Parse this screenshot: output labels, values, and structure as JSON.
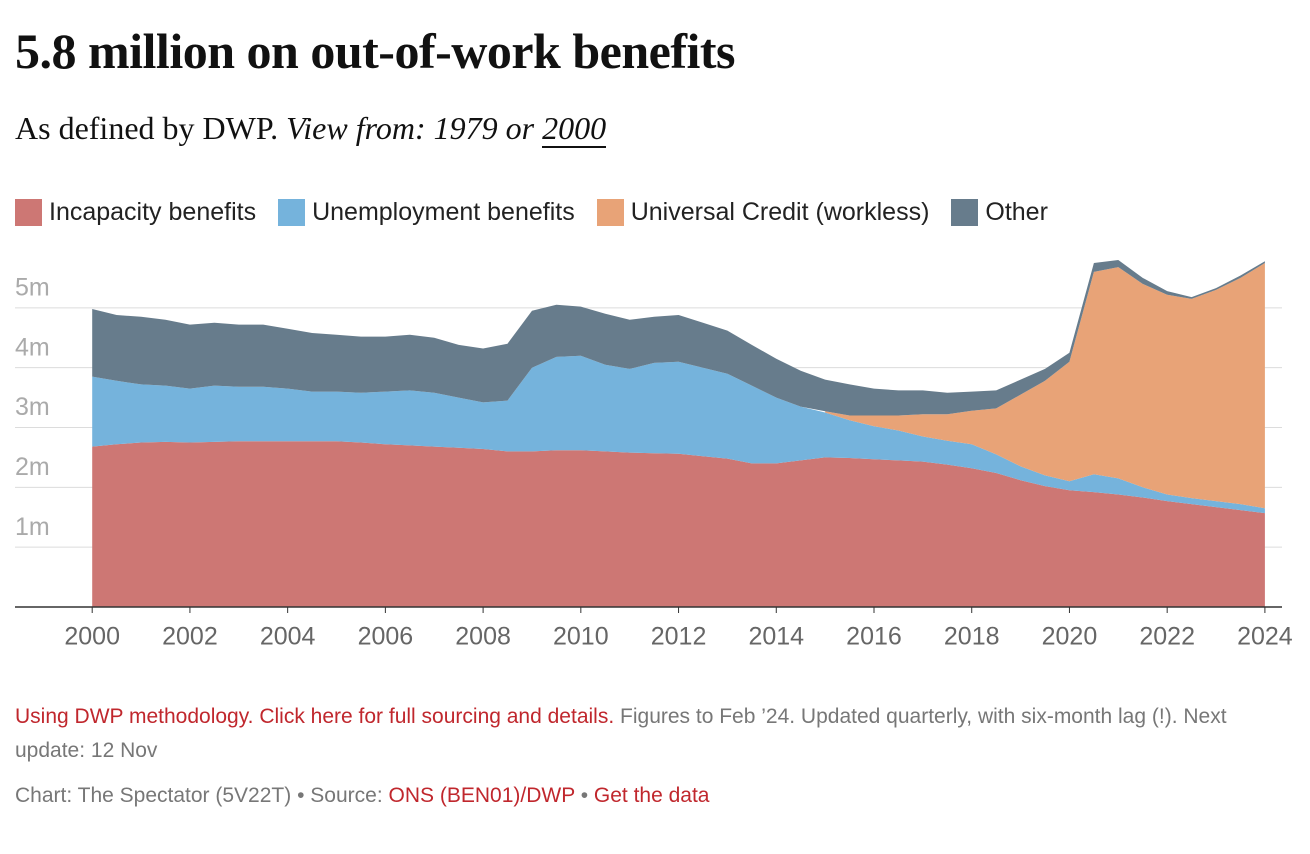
{
  "header": {
    "title": "5.8 million on out-of-work benefits",
    "subtitle": {
      "text": "As defined by DWP.",
      "view_from": "View from:",
      "options": [
        "1979",
        "2000"
      ],
      "or": "or"
    }
  },
  "chart_data": {
    "type": "stacked-area",
    "x": [
      2000,
      2000.5,
      2001,
      2001.5,
      2002,
      2002.5,
      2003,
      2003.5,
      2004,
      2004.5,
      2005,
      2005.5,
      2006,
      2006.5,
      2007,
      2007.5,
      2008,
      2008.5,
      2009,
      2009.5,
      2010,
      2010.5,
      2011,
      2011.5,
      2012,
      2012.5,
      2013,
      2013.5,
      2014,
      2014.5,
      2015,
      2015.5,
      2016,
      2016.5,
      2017,
      2017.5,
      2018,
      2018.5,
      2019,
      2019.5,
      2020,
      2020.5,
      2021,
      2021.5,
      2022,
      2022.5,
      2023,
      2023.5,
      2024
    ],
    "series": [
      {
        "name": "Incapacity benefits",
        "color": "#cd7774",
        "values": [
          2.68,
          2.72,
          2.75,
          2.76,
          2.75,
          2.76,
          2.77,
          2.77,
          2.77,
          2.77,
          2.77,
          2.75,
          2.72,
          2.7,
          2.68,
          2.66,
          2.64,
          2.6,
          2.6,
          2.62,
          2.62,
          2.6,
          2.58,
          2.57,
          2.56,
          2.52,
          2.48,
          2.4,
          2.4,
          2.45,
          2.5,
          2.49,
          2.47,
          2.45,
          2.43,
          2.38,
          2.32,
          2.24,
          2.12,
          2.02,
          1.95,
          1.92,
          1.88,
          1.83,
          1.77,
          1.72,
          1.67,
          1.62,
          1.57
        ]
      },
      {
        "name": "Unemployment benefits",
        "color": "#75b3dc",
        "values": [
          1.17,
          1.06,
          0.97,
          0.94,
          0.9,
          0.94,
          0.91,
          0.91,
          0.88,
          0.83,
          0.83,
          0.83,
          0.88,
          0.92,
          0.9,
          0.84,
          0.78,
          0.85,
          1.4,
          1.56,
          1.58,
          1.45,
          1.4,
          1.51,
          1.54,
          1.48,
          1.42,
          1.3,
          1.1,
          0.9,
          0.75,
          0.63,
          0.55,
          0.5,
          0.42,
          0.4,
          0.4,
          0.31,
          0.23,
          0.18,
          0.15,
          0.3,
          0.27,
          0.17,
          0.11,
          0.1,
          0.1,
          0.1,
          0.08
        ]
      },
      {
        "name": "Universal Credit (workless)",
        "color": "#e8a377",
        "values": [
          null,
          null,
          null,
          null,
          null,
          null,
          null,
          null,
          null,
          null,
          null,
          null,
          null,
          null,
          null,
          null,
          null,
          null,
          null,
          null,
          null,
          null,
          null,
          null,
          null,
          null,
          null,
          null,
          null,
          null,
          0.02,
          0.08,
          0.18,
          0.25,
          0.37,
          0.44,
          0.56,
          0.77,
          1.2,
          1.58,
          2.0,
          3.38,
          3.53,
          3.4,
          3.34,
          3.33,
          3.53,
          3.78,
          4.1
        ]
      },
      {
        "name": "Other",
        "color": "#677c8c",
        "values": [
          1.13,
          1.1,
          1.13,
          1.1,
          1.07,
          1.05,
          1.04,
          1.04,
          1.0,
          0.98,
          0.95,
          0.94,
          0.92,
          0.93,
          0.92,
          0.88,
          0.9,
          0.95,
          0.95,
          0.87,
          0.82,
          0.85,
          0.82,
          0.77,
          0.78,
          0.75,
          0.72,
          0.68,
          0.65,
          0.6,
          0.53,
          0.52,
          0.45,
          0.42,
          0.4,
          0.36,
          0.32,
          0.3,
          0.25,
          0.2,
          0.15,
          0.15,
          0.12,
          0.1,
          0.06,
          0.03,
          0.03,
          0.04,
          0.03
        ]
      }
    ],
    "xlim": [
      1998.42,
      2024.35
    ],
    "xticks": [
      2000,
      2002,
      2004,
      2006,
      2008,
      2010,
      2012,
      2014,
      2016,
      2018,
      2020,
      2022,
      2024
    ],
    "ylim": [
      0,
      6
    ],
    "yticks": [
      {
        "value": 1,
        "label": "1m"
      },
      {
        "value": 2,
        "label": "2m"
      },
      {
        "value": 3,
        "label": "3m"
      },
      {
        "value": 4,
        "label": "4m"
      },
      {
        "value": 5,
        "label": "5m"
      }
    ],
    "grid": true
  },
  "footer": {
    "note_link": "Using DWP methodology. Click here for full sourcing and details.",
    "note_text": "Figures to Feb ’24. Updated quarterly, with six-month lag (!). Next update: 12 Nov",
    "credit": "Chart: The Spectator (5V22T)",
    "separator": "•",
    "source_label": "Source:",
    "source": "ONS (BEN01)/DWP",
    "get_data": "Get the data"
  }
}
